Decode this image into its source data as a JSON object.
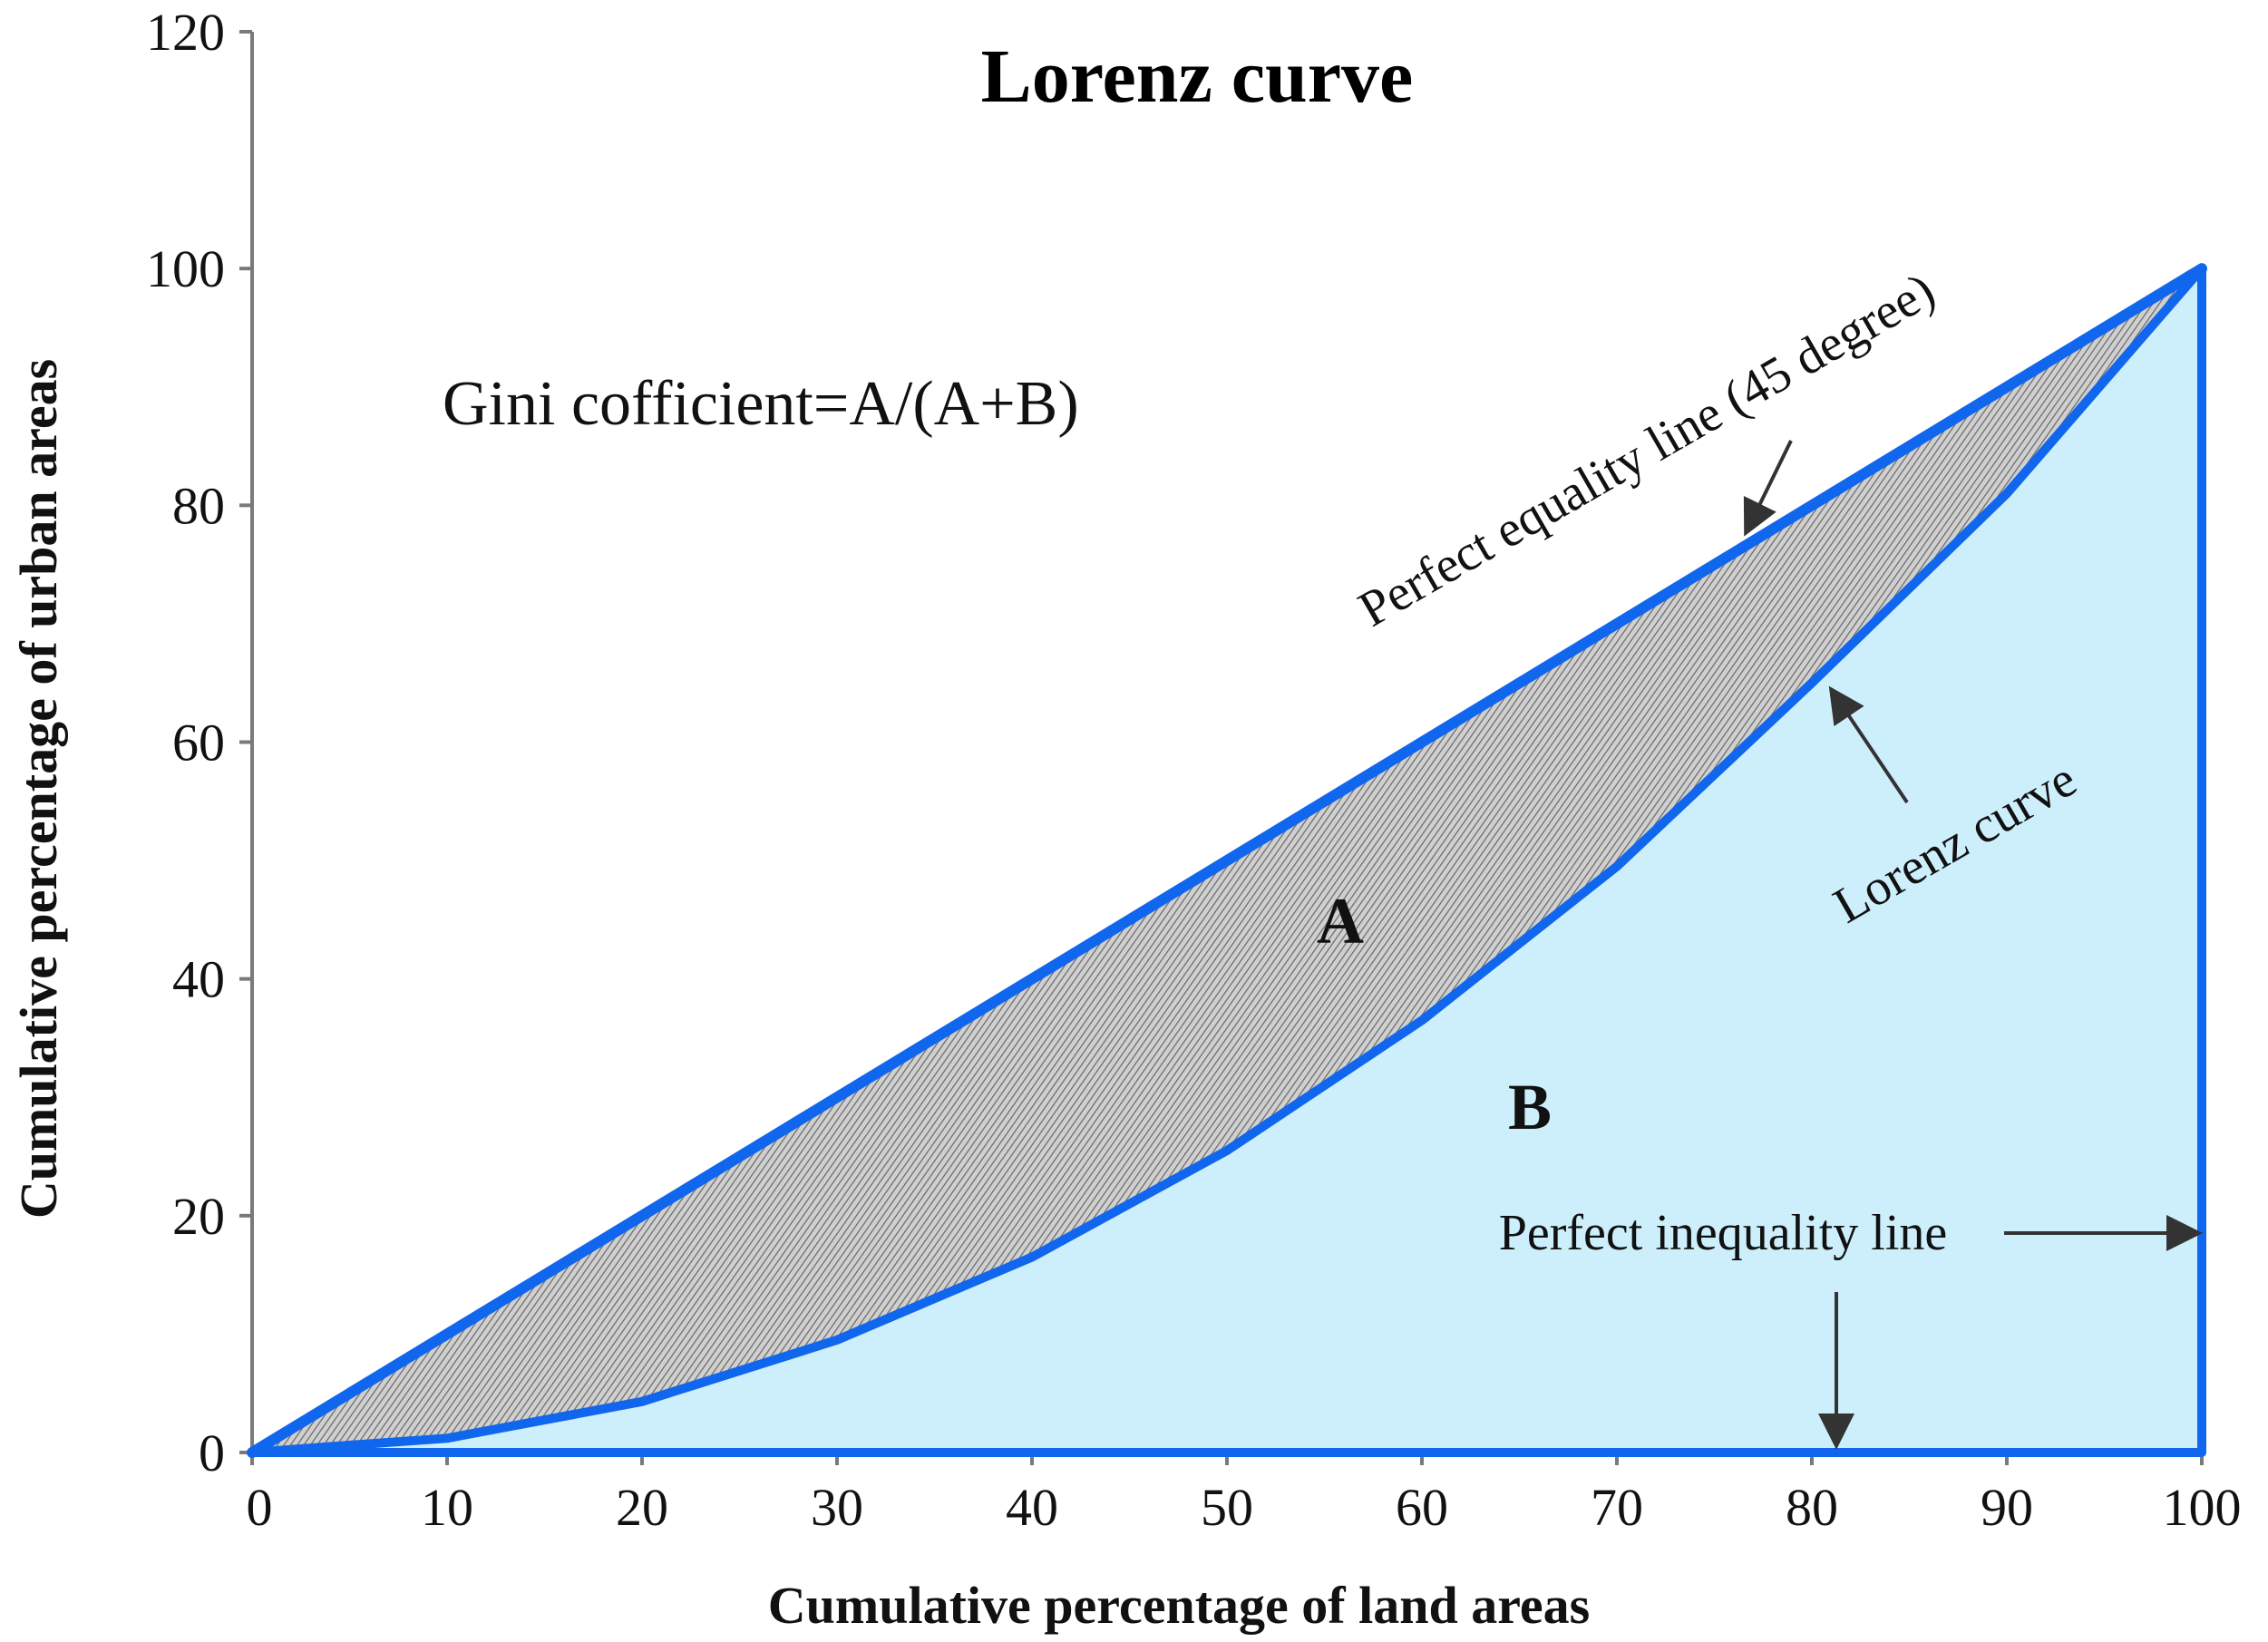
{
  "chart_data": {
    "type": "line",
    "title": "Lorenz curve",
    "xlabel": "Cumulative percentage of land areas",
    "ylabel": "Cumulative percentage of urban areas",
    "xlim": [
      0,
      100
    ],
    "ylim": [
      0,
      120
    ],
    "x_ticks": [
      0,
      10,
      20,
      30,
      40,
      50,
      60,
      70,
      80,
      90,
      100
    ],
    "y_ticks": [
      0,
      20,
      40,
      60,
      80,
      100,
      120
    ],
    "grid": false,
    "legend": "none",
    "series": [
      {
        "name": "Perfect equality line (45 degree)",
        "x": [
          0,
          100
        ],
        "y": [
          0,
          100
        ]
      },
      {
        "name": "Lorenz curve",
        "x": [
          0,
          4,
          10,
          20,
          30,
          40,
          50,
          60,
          70,
          80,
          90,
          100
        ],
        "y": [
          0,
          0.5,
          1.2,
          4.3,
          9.5,
          16.5,
          25.5,
          36.5,
          49.5,
          65,
          81,
          100
        ]
      },
      {
        "name": "Perfect inequality line",
        "x": [
          0,
          100,
          100
        ],
        "y": [
          0,
          0,
          100
        ]
      }
    ],
    "annotations": {
      "gini": "Gini cofficient=A/(A+B)",
      "region_a": "A",
      "region_b": "B",
      "equality_label": "Perfect equality line (45 degree)",
      "lorenz_label": "Lorenz curve",
      "inequality_label": "Perfect inequality line"
    },
    "colors": {
      "line": "#1166ee",
      "fill_b": "#cdeffc",
      "fill_a_base": "#d0d0d0",
      "fill_a_hatch": "#6a6a6a",
      "axis": "#7a7a7a",
      "text": "#111111",
      "arrow": "#333333"
    }
  }
}
